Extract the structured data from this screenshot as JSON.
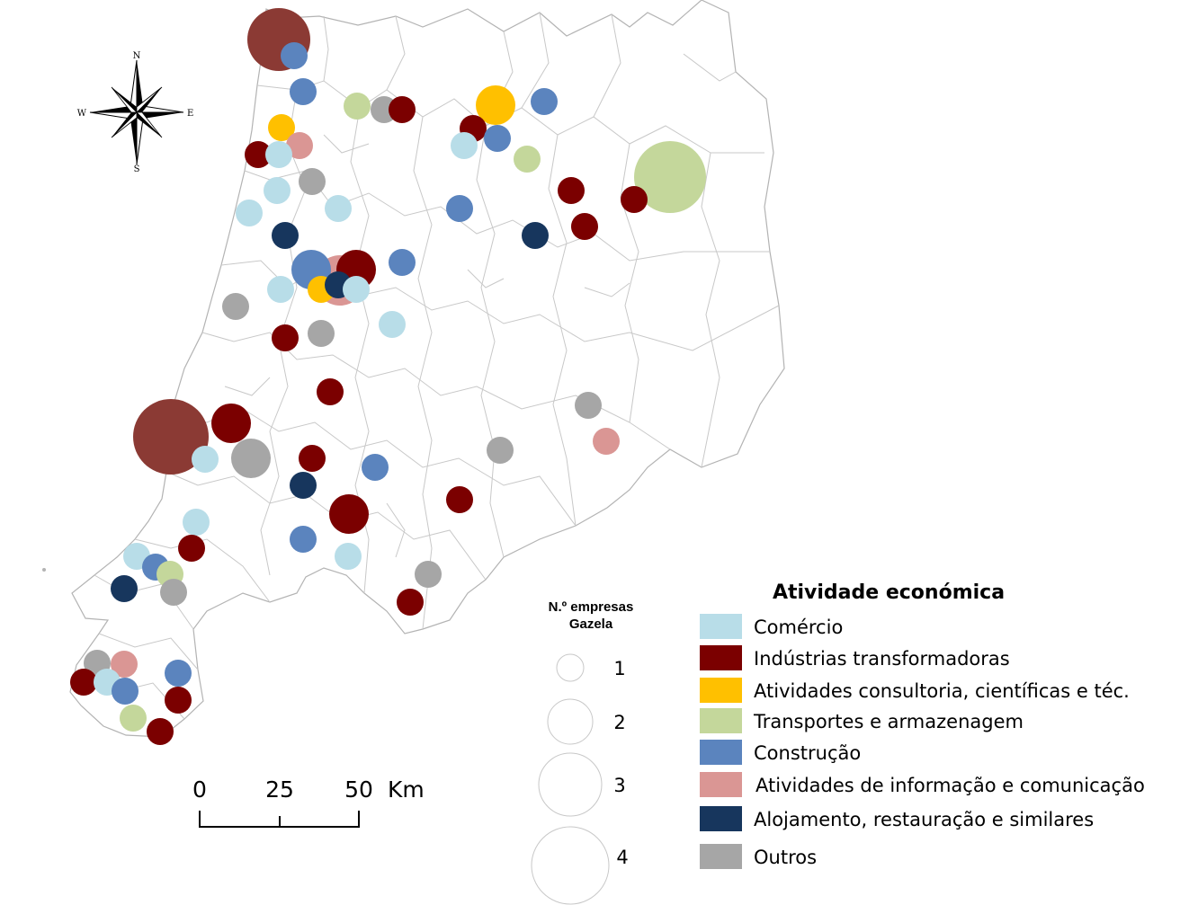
{
  "compass": {
    "north": "N",
    "south": "S",
    "east": "E",
    "west": "W"
  },
  "scale_bar": {
    "ticks": [
      "0",
      "25",
      "50"
    ],
    "unit": "Km"
  },
  "size_legend": {
    "title_line1": "N.º empresas",
    "title_line2": "Gazela",
    "sizes": [
      "1",
      "2",
      "3",
      "4"
    ]
  },
  "activity_legend": {
    "title": "Atividade económica",
    "items": [
      {
        "key": "comercio",
        "label": "Comércio",
        "color": "#b8dde8"
      },
      {
        "key": "industria",
        "label": "Indústrias transformadoras",
        "color": "#7b0000"
      },
      {
        "key": "consultoria",
        "label": "Atividades consultoria, científicas e téc.",
        "color": "#ffc000"
      },
      {
        "key": "transportes",
        "label": "Transportes e armazenagem",
        "color": "#c4d79b"
      },
      {
        "key": "construcao",
        "label": "Construção",
        "color": "#5b84be"
      },
      {
        "key": "informacao",
        "label": "Atividades de informação e comunicação",
        "color": "#da9694"
      },
      {
        "key": "alojamento",
        "label": "Alojamento, restauração e similares",
        "color": "#17365d"
      },
      {
        "key": "outros",
        "label": "Outros",
        "color": "#a6a6a6"
      }
    ]
  },
  "map_points": [
    {
      "cat": "industria_dark",
      "n": 4,
      "color": "#8b3a34"
    },
    {
      "cat": "construcao",
      "n": 1
    },
    {
      "cat": "construcao",
      "n": 1
    },
    {
      "cat": "transportes",
      "n": 1
    },
    {
      "cat": "outros",
      "n": 1
    },
    {
      "cat": "industria",
      "n": 1
    },
    {
      "cat": "consultoria",
      "n": 2
    },
    {
      "cat": "construcao",
      "n": 1
    },
    {
      "cat": "industria",
      "n": 1
    },
    {
      "cat": "construcao",
      "n": 1
    },
    {
      "cat": "comercio",
      "n": 1
    },
    {
      "cat": "transportes",
      "n": 1
    },
    {
      "cat": "consultoria",
      "n": 1
    },
    {
      "cat": "informacao",
      "n": 1
    },
    {
      "cat": "industria",
      "n": 1
    },
    {
      "cat": "comercio",
      "n": 1
    },
    {
      "cat": "outros",
      "n": 1
    },
    {
      "cat": "comercio",
      "n": 1
    },
    {
      "cat": "comercio",
      "n": 1
    },
    {
      "cat": "comercio",
      "n": 1
    },
    {
      "cat": "alojamento",
      "n": 1
    },
    {
      "cat": "transportes",
      "n": 4
    },
    {
      "cat": "industria",
      "n": 1
    },
    {
      "cat": "industria",
      "n": 1
    },
    {
      "cat": "construcao",
      "n": 1
    },
    {
      "cat": "alojamento",
      "n": 1
    },
    {
      "cat": "industria",
      "n": 1
    },
    {
      "cat": "informacao",
      "n": 3
    },
    {
      "cat": "construcao",
      "n": 2
    },
    {
      "cat": "industria",
      "n": 2
    },
    {
      "cat": "construcao",
      "n": 1
    },
    {
      "cat": "comercio",
      "n": 1
    },
    {
      "cat": "consultoria",
      "n": 1
    },
    {
      "cat": "alojamento",
      "n": 1
    },
    {
      "cat": "comercio",
      "n": 1
    },
    {
      "cat": "outros",
      "n": 1
    },
    {
      "cat": "comercio",
      "n": 1
    },
    {
      "cat": "industria",
      "n": 1
    },
    {
      "cat": "outros",
      "n": 1
    },
    {
      "cat": "industria",
      "n": 1
    },
    {
      "cat": "industria_dark",
      "n": 4,
      "color": "#8b3a34"
    },
    {
      "cat": "industria",
      "n": 2
    },
    {
      "cat": "outros",
      "n": 2
    },
    {
      "cat": "comercio",
      "n": 1
    },
    {
      "cat": "industria",
      "n": 1
    },
    {
      "cat": "construcao",
      "n": 1
    },
    {
      "cat": "alojamento",
      "n": 1
    },
    {
      "cat": "industria",
      "n": 2
    },
    {
      "cat": "outros",
      "n": 1
    },
    {
      "cat": "informacao",
      "n": 1
    },
    {
      "cat": "outros",
      "n": 1
    },
    {
      "cat": "industria",
      "n": 1
    },
    {
      "cat": "comercio",
      "n": 1
    },
    {
      "cat": "industria",
      "n": 1
    },
    {
      "cat": "construcao",
      "n": 1
    },
    {
      "cat": "comercio",
      "n": 1
    },
    {
      "cat": "comercio",
      "n": 1
    },
    {
      "cat": "construcao",
      "n": 1
    },
    {
      "cat": "transportes",
      "n": 1
    },
    {
      "cat": "alojamento",
      "n": 1
    },
    {
      "cat": "outros",
      "n": 1
    },
    {
      "cat": "outros",
      "n": 1
    },
    {
      "cat": "industria",
      "n": 1
    },
    {
      "cat": "outros",
      "n": 1
    },
    {
      "cat": "informacao",
      "n": 1
    },
    {
      "cat": "industria",
      "n": 1
    },
    {
      "cat": "comercio",
      "n": 1
    },
    {
      "cat": "construcao",
      "n": 1
    },
    {
      "cat": "construcao",
      "n": 1
    },
    {
      "cat": "industria",
      "n": 1
    },
    {
      "cat": "transportes",
      "n": 1
    },
    {
      "cat": "industria",
      "n": 1
    }
  ]
}
